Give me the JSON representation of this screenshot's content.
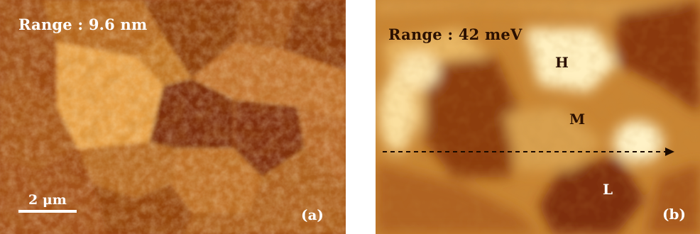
{
  "panel_a": {
    "range_label": "Range : 9.6 nm",
    "scale_label": "2 μm",
    "tag": "(a)"
  },
  "panel_b": {
    "range_label": "Range : 42 meV",
    "regions": {
      "high": "H",
      "medium": "M",
      "low": "L"
    },
    "tag": "(b)"
  },
  "colors": {
    "background": "#ffffff",
    "afm_dark": "#7a2e08",
    "afm_mid": "#b8641d",
    "afm_light": "#eaa24d",
    "kpfm_dark": "#8a3b0c",
    "kpfm_mid": "#cc8836",
    "kpfm_light": "#fff1c2",
    "label_light": "#ffffff",
    "label_dark": "#2b1000"
  }
}
